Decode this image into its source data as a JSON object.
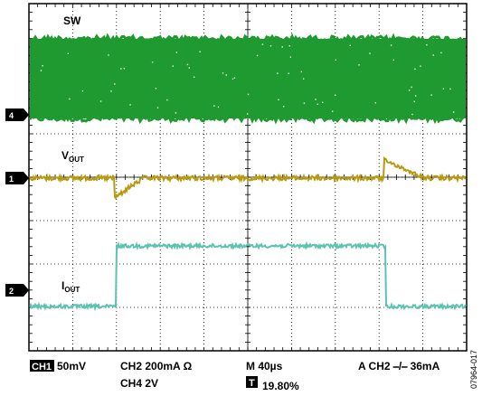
{
  "screen": {
    "trace_labels": {
      "sw": "SW",
      "vout_main": "V",
      "vout_sub": "OUT",
      "iout_main": "I",
      "iout_sub": "OUT"
    },
    "markers": [
      {
        "id": "4"
      },
      {
        "id": "1"
      },
      {
        "id": "2"
      }
    ],
    "colors": {
      "sw": "#1f9a30",
      "vout": "#b89a10",
      "iout": "#5cc3b0",
      "grid": "#000000"
    }
  },
  "readout": {
    "ch1_box": "CH1",
    "ch1_scale": "50mV",
    "ch2_scale": "CH2  200mA Ω",
    "ch4_scale": "CH4 2V",
    "timebase": "M 40µs",
    "trigger_box": "T",
    "trigger_pos": "19.80%",
    "trigger_setting": "A  CH2 ⎯/⎯ 36mA"
  },
  "figure_id": "07964-017"
}
